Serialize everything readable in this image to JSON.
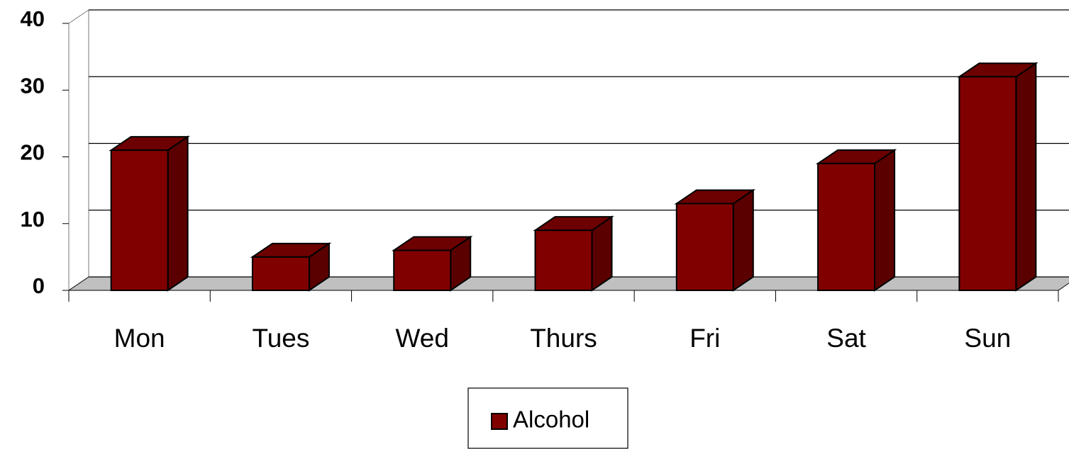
{
  "chart_data": {
    "type": "bar",
    "categories": [
      "Mon",
      "Tues",
      "Wed",
      "Thurs",
      "Fri",
      "Sat",
      "Sun"
    ],
    "series": [
      {
        "name": "Alcohol",
        "color": "#800000",
        "values": [
          21,
          5,
          6,
          9,
          13,
          19,
          32
        ]
      }
    ],
    "ylim": [
      0,
      40
    ],
    "yticks": [
      0,
      10,
      20,
      30,
      40
    ],
    "grid": true,
    "legend": "bottom"
  }
}
